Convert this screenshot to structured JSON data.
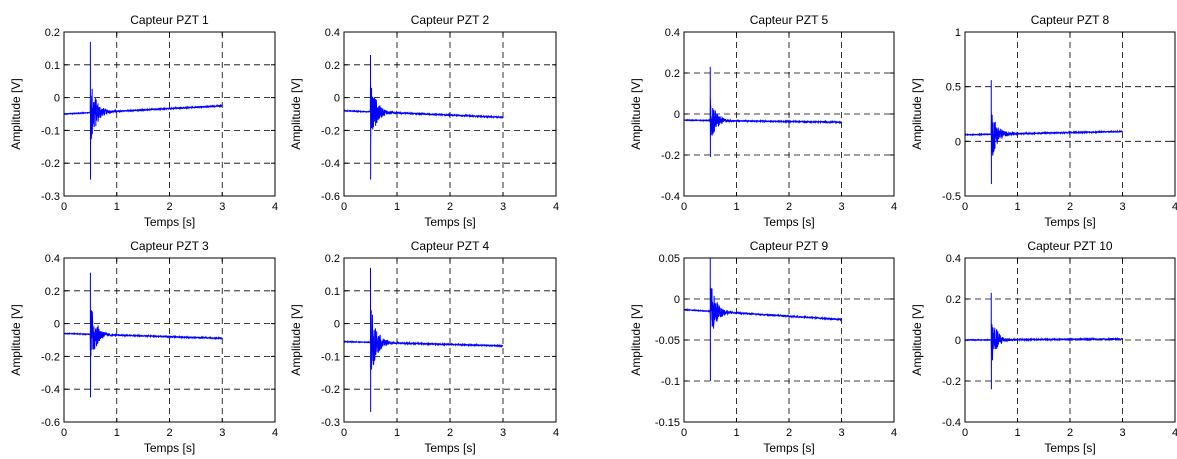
{
  "chart_data": [
    {
      "type": "line",
      "title": "Capteur PZT 1",
      "xlabel": "Temps [s]",
      "ylabel": "Amplitude [V]",
      "xlim": [
        0,
        4
      ],
      "ylim": [
        -0.3,
        0.2
      ],
      "xticks": [
        "0",
        "1",
        "2",
        "3",
        "4"
      ],
      "yticks": [
        "-0.3",
        "-0.2",
        "-0.1",
        "0",
        "0.1",
        "0.2"
      ],
      "grid": true,
      "signal": {
        "x_start": 0,
        "x_spike": 0.5,
        "x_end": 3.0,
        "baseline_start": -0.05,
        "baseline_end": -0.025,
        "spike_max": 0.17,
        "spike_min": -0.25
      },
      "color": "#0000ff"
    },
    {
      "type": "line",
      "title": "Capteur PZT 2",
      "xlabel": "Temps [s]",
      "ylabel": "Amplitude [V]",
      "xlim": [
        0,
        4
      ],
      "ylim": [
        -0.6,
        0.4
      ],
      "xticks": [
        "0",
        "1",
        "2",
        "3",
        "4"
      ],
      "yticks": [
        "-0.6",
        "-0.4",
        "-0.2",
        "0",
        "0.2",
        "0.4"
      ],
      "grid": true,
      "signal": {
        "x_start": 0,
        "x_spike": 0.5,
        "x_end": 3.0,
        "baseline_start": -0.08,
        "baseline_end": -0.12,
        "spike_max": 0.26,
        "spike_min": -0.5
      },
      "color": "#0000ff"
    },
    {
      "type": "line",
      "title": "Capteur PZT 5",
      "xlabel": "Temps [s]",
      "ylabel": "Amplitude [V]",
      "xlim": [
        0,
        4
      ],
      "ylim": [
        -0.4,
        0.4
      ],
      "xticks": [
        "0",
        "1",
        "2",
        "3",
        "4"
      ],
      "yticks": [
        "-0.4",
        "-0.2",
        "0",
        "0.2",
        "0.4"
      ],
      "grid": true,
      "signal": {
        "x_start": 0,
        "x_spike": 0.5,
        "x_end": 3.0,
        "baseline_start": -0.03,
        "baseline_end": -0.04,
        "spike_max": 0.23,
        "spike_min": -0.21
      },
      "color": "#0000ff"
    },
    {
      "type": "line",
      "title": "Capteur PZT 8",
      "xlabel": "Temps [s]",
      "ylabel": "Amplitude [V]",
      "xlim": [
        0,
        4
      ],
      "ylim": [
        -0.5,
        1
      ],
      "xticks": [
        "0",
        "1",
        "2",
        "3",
        "4"
      ],
      "yticks": [
        "-0.5",
        "0",
        "0.5",
        "1"
      ],
      "grid": true,
      "signal": {
        "x_start": 0,
        "x_spike": 0.5,
        "x_end": 3.0,
        "baseline_start": 0.06,
        "baseline_end": 0.09,
        "spike_max": 0.56,
        "spike_min": -0.39
      },
      "color": "#0000ff"
    },
    {
      "type": "line",
      "title": "Capteur PZT 3",
      "xlabel": "Temps [s]",
      "ylabel": "Amplitude [V]",
      "xlim": [
        0,
        4
      ],
      "ylim": [
        -0.6,
        0.4
      ],
      "xticks": [
        "0",
        "1",
        "2",
        "3",
        "4"
      ],
      "yticks": [
        "-0.6",
        "-0.4",
        "-0.2",
        "0",
        "0.2",
        "0.4"
      ],
      "grid": true,
      "signal": {
        "x_start": 0,
        "x_spike": 0.5,
        "x_end": 3.0,
        "baseline_start": -0.06,
        "baseline_end": -0.09,
        "spike_max": 0.31,
        "spike_min": -0.45
      },
      "color": "#0000ff"
    },
    {
      "type": "line",
      "title": "Capteur PZT 4",
      "xlabel": "Temps [s]",
      "ylabel": "Amplitude [V]",
      "xlim": [
        0,
        4
      ],
      "ylim": [
        -0.3,
        0.2
      ],
      "xticks": [
        "0",
        "1",
        "2",
        "3",
        "4"
      ],
      "yticks": [
        "-0.3",
        "-0.2",
        "-0.1",
        "0",
        "0.1",
        "0.2"
      ],
      "grid": true,
      "signal": {
        "x_start": 0,
        "x_spike": 0.5,
        "x_end": 3.0,
        "baseline_start": -0.055,
        "baseline_end": -0.068,
        "spike_max": 0.17,
        "spike_min": -0.27
      },
      "color": "#0000ff"
    },
    {
      "type": "line",
      "title": "Capteur PZT 9",
      "xlabel": "Temps [s]",
      "ylabel": "Amplitude [V]",
      "xlim": [
        0,
        4
      ],
      "ylim": [
        -0.15,
        0.05
      ],
      "xticks": [
        "0",
        "1",
        "2",
        "3",
        "4"
      ],
      "yticks": [
        "-0.15",
        "-0.1",
        "-0.05",
        "0",
        "0.05"
      ],
      "grid": true,
      "signal": {
        "x_start": 0,
        "x_spike": 0.5,
        "x_end": 3.0,
        "baseline_start": -0.013,
        "baseline_end": -0.025,
        "spike_max": 0.05,
        "spike_min": -0.1
      },
      "color": "#0000ff"
    },
    {
      "type": "line",
      "title": "Capteur PZT 10",
      "xlabel": "Temps [s]",
      "ylabel": "Amplitude [V]",
      "xlim": [
        0,
        4
      ],
      "ylim": [
        -0.4,
        0.4
      ],
      "xticks": [
        "0",
        "1",
        "2",
        "3",
        "4"
      ],
      "yticks": [
        "-0.4",
        "-0.2",
        "0",
        "0.2",
        "0.4"
      ],
      "grid": true,
      "signal": {
        "x_start": 0,
        "x_spike": 0.5,
        "x_end": 3.0,
        "baseline_start": 0.0,
        "baseline_end": 0.005,
        "spike_max": 0.23,
        "spike_min": -0.24
      },
      "color": "#0000ff"
    }
  ]
}
